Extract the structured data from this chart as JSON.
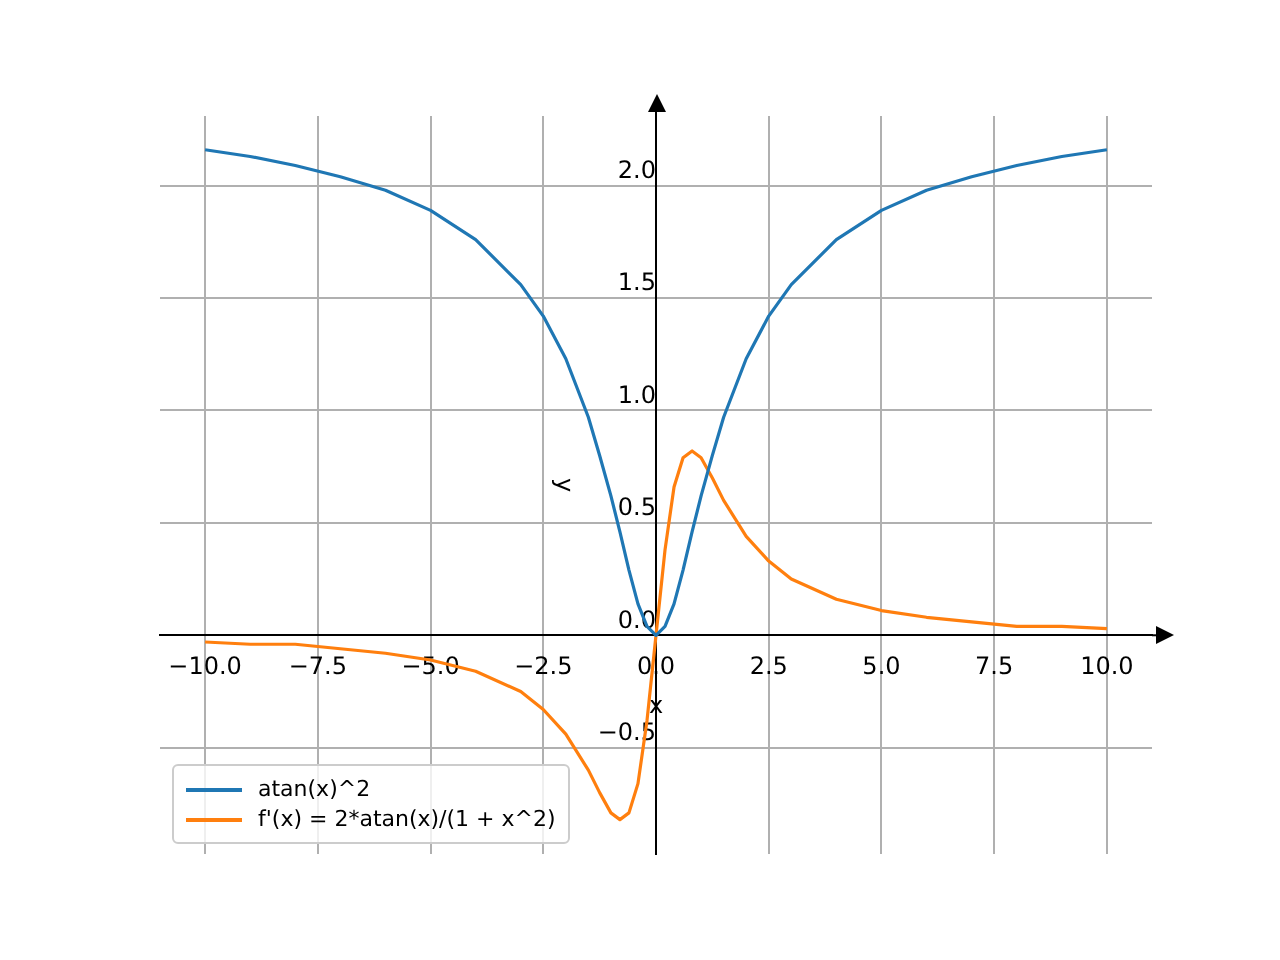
{
  "chart_data": {
    "type": "line",
    "xlabel": "x",
    "ylabel": "y",
    "xlim": [
      -11,
      11
    ],
    "ylim": [
      -0.973,
      2.31
    ],
    "xticks": [
      {
        "value": -10,
        "label": "−10.0"
      },
      {
        "value": -7.5,
        "label": "−7.5"
      },
      {
        "value": -5,
        "label": "−5.0"
      },
      {
        "value": -2.5,
        "label": "−2.5"
      },
      {
        "value": 0,
        "label": "0.0"
      },
      {
        "value": 2.5,
        "label": "2.5"
      },
      {
        "value": 5,
        "label": "5.0"
      },
      {
        "value": 7.5,
        "label": "7.5"
      },
      {
        "value": 10,
        "label": "10.0"
      }
    ],
    "yticks": [
      {
        "value": -0.5,
        "label": "−0.5"
      },
      {
        "value": 0,
        "label": "0.0"
      },
      {
        "value": 0.5,
        "label": "0.5"
      },
      {
        "value": 1,
        "label": "1.0"
      },
      {
        "value": 1.5,
        "label": "1.5"
      },
      {
        "value": 2,
        "label": "2.0"
      }
    ],
    "x": [
      -10,
      -9,
      -8,
      -7,
      -6,
      -5,
      -4,
      -3,
      -2.5,
      -2,
      -1.5,
      -1.25,
      -1,
      -0.8,
      -0.6,
      -0.4,
      -0.2,
      0,
      0.2,
      0.4,
      0.6,
      0.8,
      1,
      1.25,
      1.5,
      2,
      2.5,
      3,
      4,
      5,
      6,
      7,
      8,
      9,
      10
    ],
    "series": [
      {
        "name": "atan(x)^2",
        "color": "#1f77b4",
        "values": [
          2.16,
          2.13,
          2.09,
          2.04,
          1.98,
          1.89,
          1.76,
          1.56,
          1.42,
          1.23,
          0.97,
          0.8,
          0.62,
          0.46,
          0.29,
          0.14,
          0.04,
          0,
          0.04,
          0.14,
          0.29,
          0.46,
          0.62,
          0.8,
          0.97,
          1.23,
          1.42,
          1.56,
          1.76,
          1.89,
          1.98,
          2.04,
          2.09,
          2.13,
          2.16
        ]
      },
      {
        "name": "f'(x) = 2*atan(x)/(1 + x^2)",
        "color": "#ff7f0e",
        "values": [
          -0.03,
          -0.04,
          -0.04,
          -0.06,
          -0.08,
          -0.11,
          -0.16,
          -0.25,
          -0.33,
          -0.44,
          -0.6,
          -0.7,
          -0.79,
          -0.82,
          -0.79,
          -0.66,
          -0.38,
          0,
          0.38,
          0.66,
          0.79,
          0.82,
          0.79,
          0.7,
          0.6,
          0.44,
          0.33,
          0.25,
          0.16,
          0.11,
          0.08,
          0.06,
          0.04,
          0.04,
          0.03
        ]
      }
    ],
    "grid": true,
    "legend": "bottom left",
    "marker": "none",
    "line_style": "solid"
  }
}
